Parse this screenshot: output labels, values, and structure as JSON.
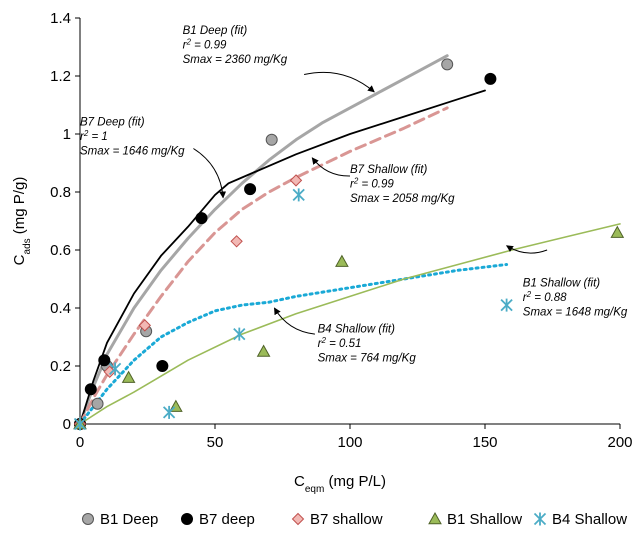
{
  "chart_data": {
    "type": "scatter",
    "title": "",
    "xlabel": {
      "main": "C",
      "sub": "eqm",
      "rest": " (mg P/L)"
    },
    "ylabel": {
      "main": "C",
      "sub": "ads",
      "rest": " (mg P/g)"
    },
    "xlim": [
      0,
      200
    ],
    "ylim": [
      0,
      1.4
    ],
    "x_ticks": [
      "0",
      "50",
      "100",
      "150",
      "200"
    ],
    "y_ticks": [
      "0",
      "0.2",
      "0.4",
      "0.6",
      "0.8",
      "1",
      "1.2",
      "1.4"
    ],
    "grid": false,
    "legend_position": "bottom",
    "series": [
      {
        "name": "B1 Deep",
        "marker": "circle",
        "color": "#a6a6a6",
        "stroke": "#555555",
        "points": [
          [
            0,
            0
          ],
          [
            6.5,
            0.07
          ],
          [
            10,
            0.2
          ],
          [
            24.5,
            0.32
          ],
          [
            71,
            0.98
          ],
          [
            136,
            1.24
          ]
        ]
      },
      {
        "name": "B7 deep",
        "marker": "circle",
        "color": "#000000",
        "stroke": "#000000",
        "points": [
          [
            0,
            0
          ],
          [
            4,
            0.12
          ],
          [
            9,
            0.22
          ],
          [
            30.5,
            0.2
          ],
          [
            45,
            0.71
          ],
          [
            63,
            0.81
          ],
          [
            152,
            1.19
          ]
        ]
      },
      {
        "name": "B7 shallow",
        "marker": "diamond",
        "color": "#f2b8b4",
        "stroke": "#c0504d",
        "points": [
          [
            0,
            0
          ],
          [
            11,
            0.18
          ],
          [
            24,
            0.34
          ],
          [
            58,
            0.63
          ],
          [
            80,
            0.84
          ]
        ]
      },
      {
        "name": "B1 Shallow",
        "marker": "triangle",
        "color": "#9bbb59",
        "stroke": "#4f6228",
        "points": [
          [
            0,
            0
          ],
          [
            18,
            0.16
          ],
          [
            35.5,
            0.06
          ],
          [
            68,
            0.25
          ],
          [
            97,
            0.56
          ],
          [
            199,
            0.66
          ]
        ]
      },
      {
        "name": "B4 Shallow",
        "marker": "asterisk",
        "color": "#4bacc6",
        "stroke": "#31849b",
        "points": [
          [
            0,
            0
          ],
          [
            13,
            0.19
          ],
          [
            33,
            0.04
          ],
          [
            59,
            0.31
          ],
          [
            81,
            0.79
          ],
          [
            158,
            0.41
          ]
        ]
      }
    ],
    "fits": [
      {
        "name": "B1 Deep (fit)",
        "color": "#a6a6a6",
        "width": 3,
        "dash": "",
        "points": [
          [
            0,
            0
          ],
          [
            5,
            0.13
          ],
          [
            10,
            0.24
          ],
          [
            20,
            0.4
          ],
          [
            30,
            0.53
          ],
          [
            40,
            0.64
          ],
          [
            50,
            0.74
          ],
          [
            60,
            0.83
          ],
          [
            70,
            0.91
          ],
          [
            80,
            0.98
          ],
          [
            90,
            1.04
          ],
          [
            100,
            1.09
          ],
          [
            110,
            1.14
          ],
          [
            120,
            1.19
          ],
          [
            136,
            1.27
          ]
        ]
      },
      {
        "name": "B7 Deep (fit)",
        "color": "#000000",
        "width": 1.8,
        "dash": "",
        "points": [
          [
            0,
            0
          ],
          [
            5,
            0.15
          ],
          [
            10,
            0.28
          ],
          [
            20,
            0.45
          ],
          [
            30,
            0.58
          ],
          [
            40,
            0.68
          ],
          [
            50,
            0.79
          ],
          [
            55,
            0.83
          ],
          [
            60,
            0.85
          ],
          [
            80,
            0.93
          ],
          [
            100,
            1.0
          ],
          [
            120,
            1.06
          ],
          [
            140,
            1.12
          ],
          [
            150,
            1.15
          ]
        ]
      },
      {
        "name": "B7 Shallow (fit)",
        "color": "#d99694",
        "width": 3,
        "dash": "10 6",
        "points": [
          [
            0,
            0
          ],
          [
            5,
            0.09
          ],
          [
            10,
            0.17
          ],
          [
            20,
            0.31
          ],
          [
            30,
            0.44
          ],
          [
            40,
            0.56
          ],
          [
            50,
            0.66
          ],
          [
            60,
            0.74
          ],
          [
            70,
            0.8
          ],
          [
            80,
            0.85
          ],
          [
            100,
            0.94
          ],
          [
            120,
            1.02
          ],
          [
            136,
            1.09
          ]
        ]
      },
      {
        "name": "B4 Shallow (fit)",
        "color": "#1aa9d6",
        "width": 3,
        "dash": "2 4",
        "points": [
          [
            0,
            0
          ],
          [
            10,
            0.12
          ],
          [
            20,
            0.22
          ],
          [
            30,
            0.3
          ],
          [
            40,
            0.35
          ],
          [
            50,
            0.39
          ],
          [
            60,
            0.41
          ],
          [
            70,
            0.42
          ],
          [
            80,
            0.44
          ],
          [
            100,
            0.47
          ],
          [
            120,
            0.5
          ],
          [
            140,
            0.53
          ],
          [
            158,
            0.55
          ]
        ]
      },
      {
        "name": "B1 Shallow (fit)",
        "color": "#9bbb59",
        "width": 1.6,
        "dash": "",
        "points": [
          [
            0,
            0
          ],
          [
            10,
            0.06
          ],
          [
            20,
            0.11
          ],
          [
            40,
            0.22
          ],
          [
            60,
            0.31
          ],
          [
            80,
            0.38
          ],
          [
            100,
            0.44
          ],
          [
            120,
            0.5
          ],
          [
            140,
            0.55
          ],
          [
            160,
            0.6
          ],
          [
            180,
            0.645
          ],
          [
            200,
            0.69
          ]
        ]
      }
    ],
    "annotations": [
      {
        "lines": [
          "B1 Deep (fit)",
          "r2 = 0.99",
          "Smax = 2360 mg/Kg"
        ],
        "text_at": [
          38,
          1.345
        ],
        "arrow_from": [
          83,
          1.205
        ],
        "arrow_to": [
          109,
          1.145
        ]
      },
      {
        "lines": [
          "B7 Deep (fit)",
          "r2 = 1",
          "Smax = 1646 mg/Kg"
        ],
        "text_at": [
          0,
          1.03
        ],
        "arrow_from": [
          42,
          0.95
        ],
        "arrow_to": [
          53,
          0.78
        ]
      },
      {
        "lines": [
          "B7 Shallow (fit)",
          "r2 = 0.99",
          "Smax = 2058 mg/Kg"
        ],
        "text_at": [
          100,
          0.865
        ],
        "arrow_from": [
          100,
          0.855
        ],
        "arrow_to": [
          86,
          0.918
        ]
      },
      {
        "lines": [
          "B4 Shallow (fit)",
          "r2 = 0.51",
          "Smax = 764 mg/Kg"
        ],
        "text_at": [
          88,
          0.315
        ],
        "arrow_from": [
          87,
          0.31
        ],
        "arrow_to": [
          72,
          0.4
        ]
      },
      {
        "lines": [
          "B1 Shallow (fit)",
          "r2 = 0.88",
          "Smax = 1648 mg/Kg"
        ],
        "text_at": [
          164,
          0.475
        ],
        "arrow_from": [
          173,
          0.6
        ],
        "arrow_to": [
          158,
          0.615
        ]
      }
    ]
  }
}
